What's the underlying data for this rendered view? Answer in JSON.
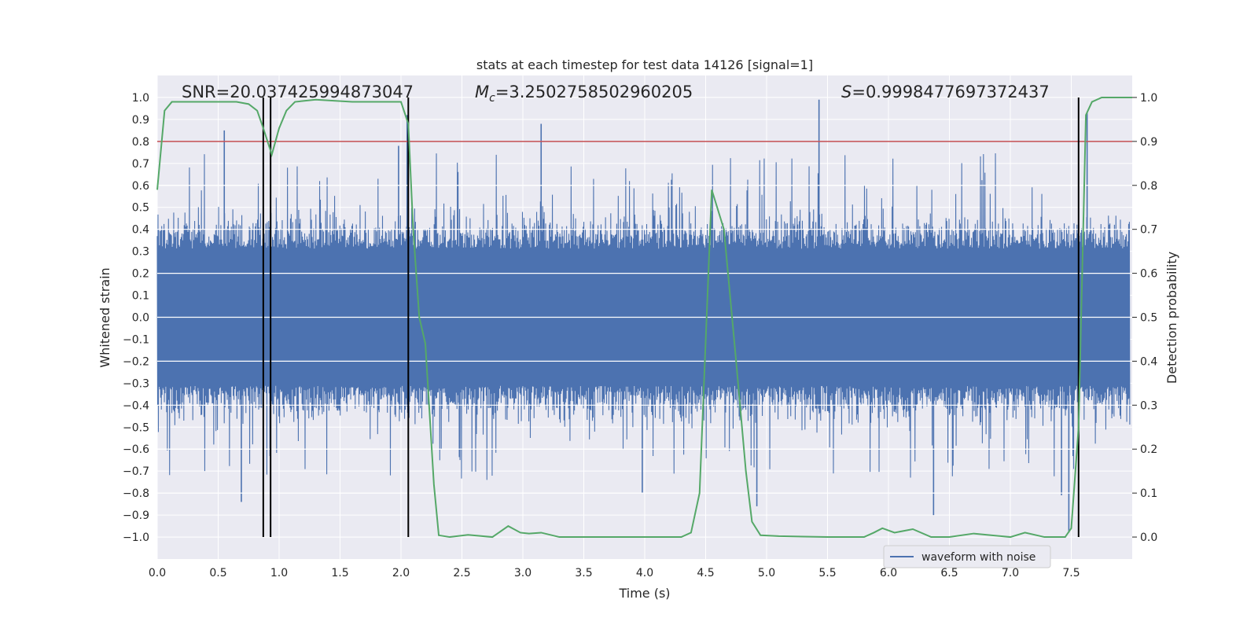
{
  "chart_data": {
    "type": "line",
    "title": "stats at each timestep for test data 14126 [signal=1]",
    "xlabel": "Time (s)",
    "ylabel": "Whitened strain",
    "y2label": "Detection probability",
    "xlim": [
      0.0,
      8.0
    ],
    "ylim": [
      -1.1,
      1.1
    ],
    "y2lim": [
      -0.05,
      1.05
    ],
    "x_ticks": [
      "0.0",
      "0.5",
      "1.0",
      "1.5",
      "2.0",
      "2.5",
      "3.0",
      "3.5",
      "4.0",
      "4.5",
      "5.0",
      "5.5",
      "6.0",
      "6.5",
      "7.0",
      "7.5"
    ],
    "y_ticks": [
      "1.0",
      "0.9",
      "0.8",
      "0.7",
      "0.6",
      "0.5",
      "0.4",
      "0.3",
      "0.2",
      "0.1",
      "0.0",
      "-0.1",
      "-0.2",
      "-0.3",
      "-0.4",
      "-0.5",
      "-0.6",
      "-0.7",
      "-0.8",
      "-0.9",
      "-1.0"
    ],
    "y2_ticks": [
      "1.0",
      "0.9",
      "0.8",
      "0.7",
      "0.6",
      "0.5",
      "0.4",
      "0.3",
      "0.2",
      "0.1",
      "0.0"
    ],
    "grid": true,
    "legend": {
      "placement": "lower-right",
      "entries": [
        "waveform with noise"
      ]
    },
    "annotations": {
      "snr": "SNR=20.037425994873047",
      "mc_prefix": "M",
      "mc_sub": "c",
      "mc_value": "=3.2502758502960205",
      "s_prefix": "S",
      "s_value": "=0.9998477697372437"
    },
    "threshold_y2": 0.9,
    "vertical_lines_x": [
      0.87,
      0.93,
      2.06,
      7.56
    ],
    "waveform": {
      "name": "waveform with noise",
      "typical_amplitude": 0.4,
      "peak_samples": [
        {
          "x": 0.55,
          "y": 0.85
        },
        {
          "x": 0.69,
          "y": -0.84
        },
        {
          "x": 1.98,
          "y": 0.78
        },
        {
          "x": 2.05,
          "y": 0.92
        },
        {
          "x": 3.15,
          "y": 0.88
        },
        {
          "x": 3.98,
          "y": -0.8
        },
        {
          "x": 4.92,
          "y": -0.86
        },
        {
          "x": 5.43,
          "y": 0.99
        },
        {
          "x": 6.37,
          "y": -0.9
        },
        {
          "x": 7.42,
          "y": -0.81
        },
        {
          "x": 7.48,
          "y": -0.98
        },
        {
          "x": 7.63,
          "y": 0.93
        }
      ]
    },
    "detection_probability": {
      "x": [
        0.0,
        0.06,
        0.12,
        0.3,
        0.5,
        0.65,
        0.75,
        0.82,
        0.87,
        0.94,
        1.0,
        1.06,
        1.13,
        1.3,
        1.6,
        1.85,
        2.0,
        2.06,
        2.1,
        2.15,
        2.2,
        2.27,
        2.31,
        2.4,
        2.55,
        2.75,
        2.88,
        2.98,
        3.05,
        3.15,
        3.3,
        3.5,
        3.8,
        4.1,
        4.3,
        4.38,
        4.45,
        4.55,
        4.65,
        4.75,
        4.83,
        4.88,
        4.95,
        5.1,
        5.5,
        5.8,
        5.88,
        5.95,
        6.05,
        6.2,
        6.35,
        6.5,
        6.7,
        7.0,
        7.12,
        7.28,
        7.45,
        7.5,
        7.56,
        7.62,
        7.67,
        7.75,
        8.0
      ],
      "y": [
        0.79,
        0.97,
        0.99,
        0.99,
        0.99,
        0.99,
        0.985,
        0.97,
        0.93,
        0.87,
        0.93,
        0.97,
        0.99,
        0.995,
        0.99,
        0.99,
        0.99,
        0.94,
        0.7,
        0.5,
        0.44,
        0.12,
        0.004,
        0.0,
        0.005,
        0.0,
        0.025,
        0.01,
        0.008,
        0.01,
        0.0,
        0.0,
        0.0,
        0.0,
        0.0,
        0.01,
        0.1,
        0.79,
        0.7,
        0.4,
        0.15,
        0.035,
        0.004,
        0.002,
        0.0,
        0.0,
        0.01,
        0.02,
        0.01,
        0.018,
        0.0,
        0.0,
        0.008,
        0.0,
        0.01,
        0.0,
        0.0,
        0.02,
        0.25,
        0.96,
        0.99,
        1.0,
        1.0
      ]
    },
    "colors": {
      "background": "#eaeaf2",
      "grid": "#ffffff",
      "waveform": "#4c72b0",
      "probability": "#55a868",
      "threshold": "#c44e52",
      "vlines": "#000000",
      "text": "#262626"
    }
  }
}
